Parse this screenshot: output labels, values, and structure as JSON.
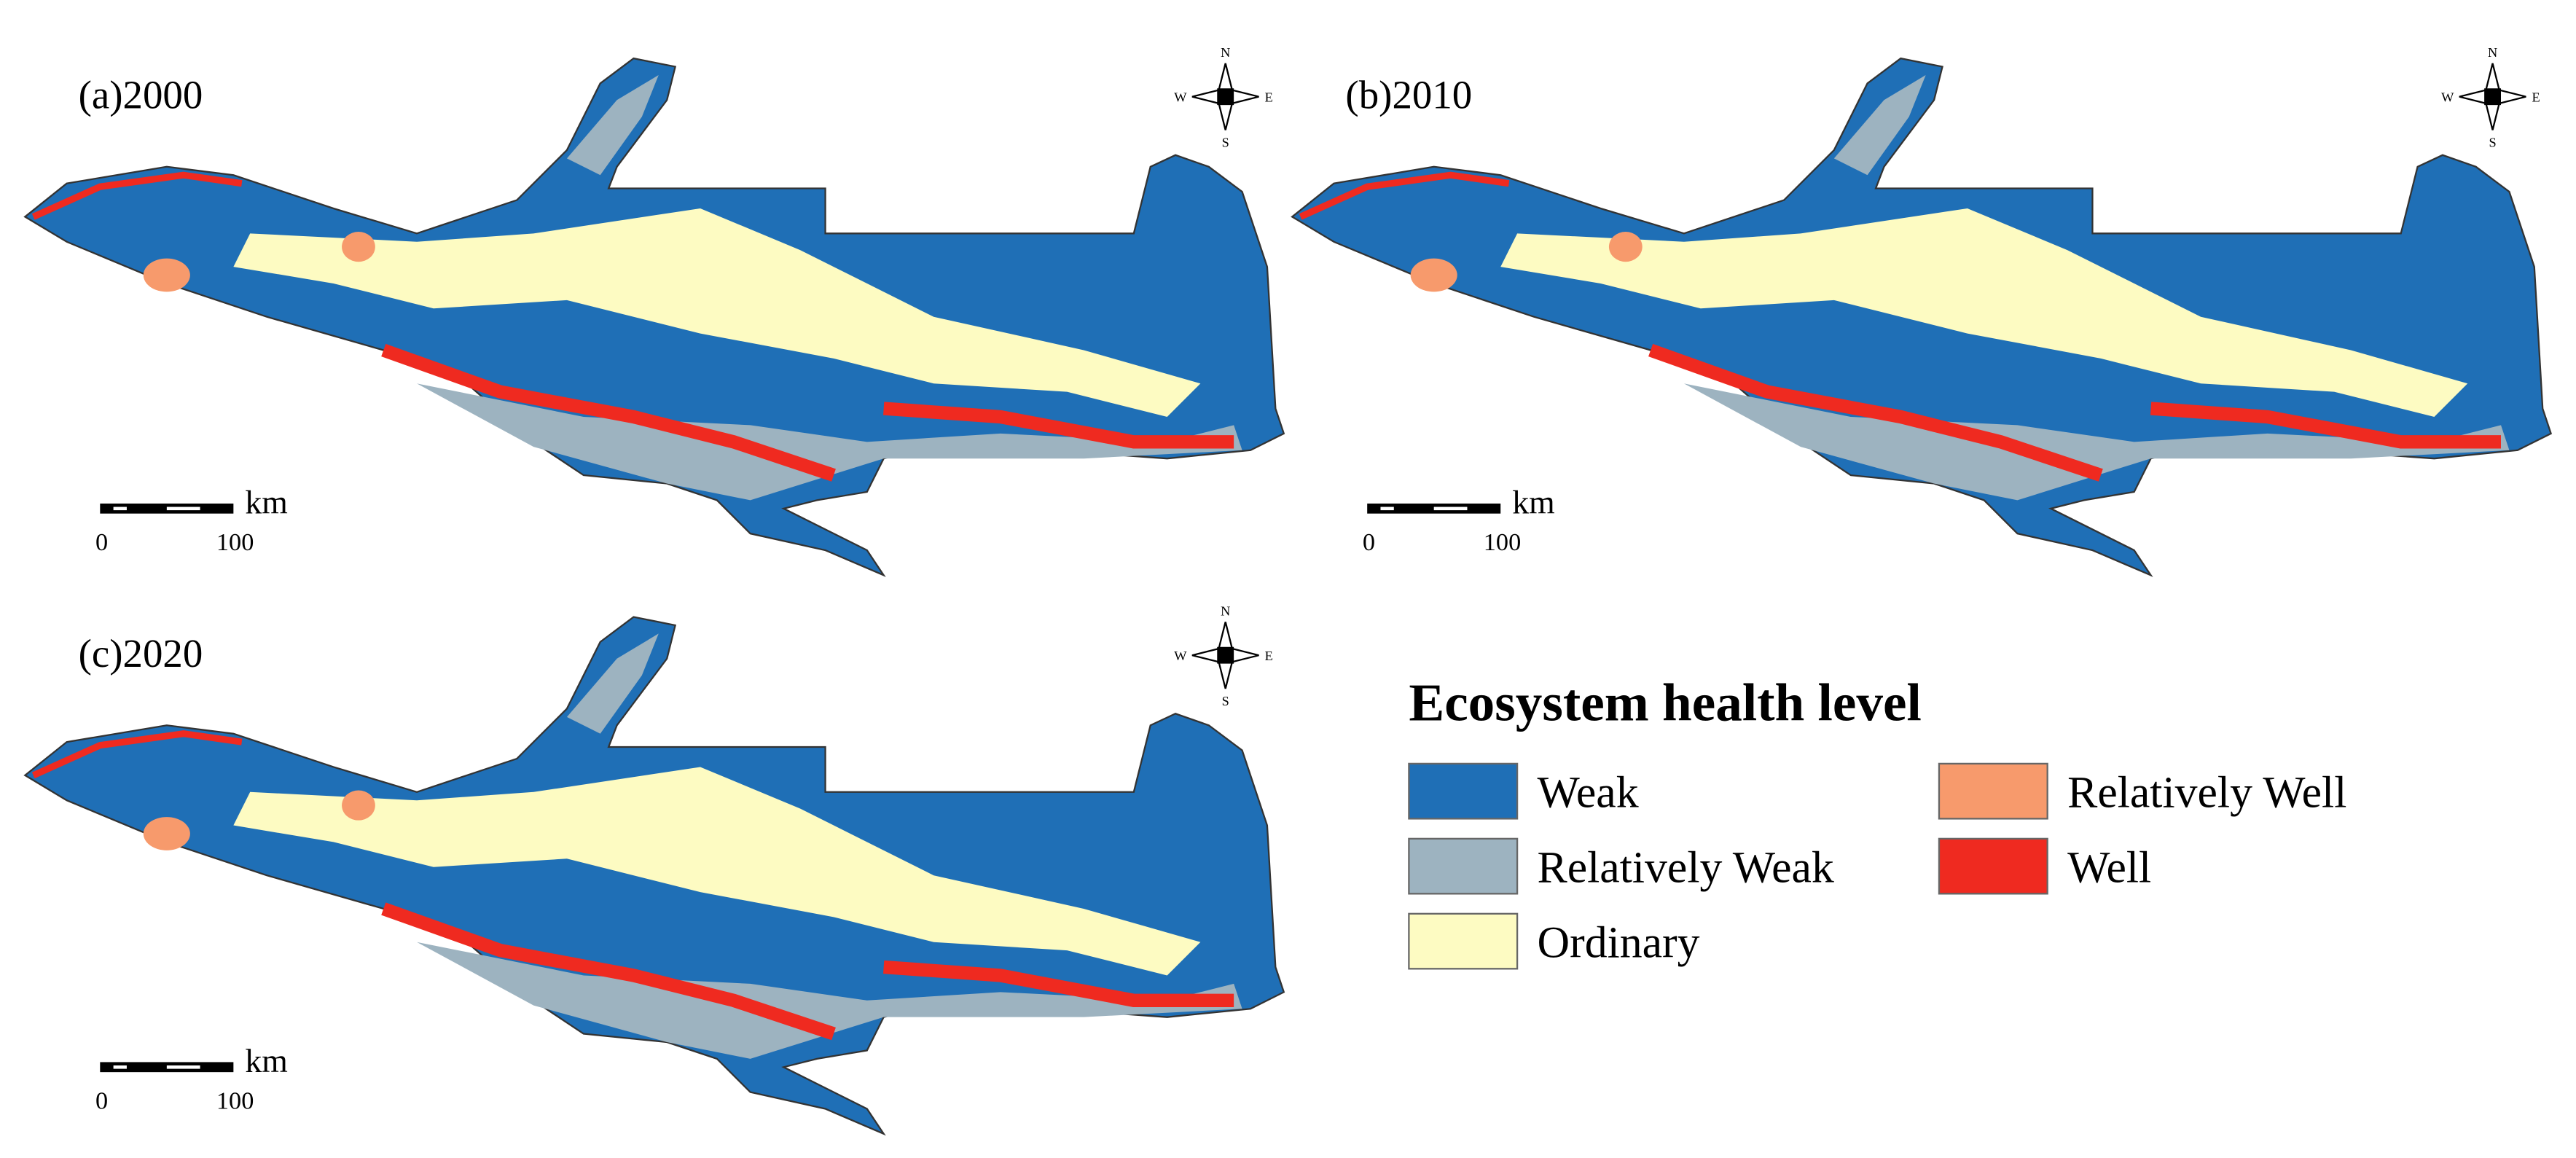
{
  "panels": [
    {
      "label": "(a)2000"
    },
    {
      "label": "(b)2010"
    },
    {
      "label": "(c)2020"
    }
  ],
  "compass": {
    "north": "N",
    "south": "S",
    "west": "W",
    "east": "E"
  },
  "scale_bar": {
    "unit": "km",
    "start": 0,
    "end": 100
  },
  "legend": {
    "title": "Ecosystem health level",
    "items": [
      {
        "label": "Weak",
        "color": "#1f6fb6"
      },
      {
        "label": "Relatively Weak",
        "color": "#9db3c0"
      },
      {
        "label": "Ordinary",
        "color": "#fdfbc2"
      },
      {
        "label": "Relatively Well",
        "color": "#f79a6c"
      },
      {
        "label": "Well",
        "color": "#ef2a20"
      }
    ]
  }
}
